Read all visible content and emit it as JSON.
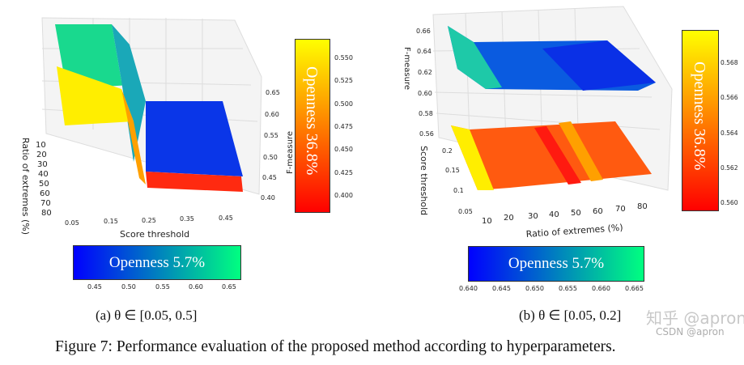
{
  "figure": {
    "caption": "Figure 7: Performance evaluation of the proposed method according to hyperparameters.",
    "panels": [
      {
        "label": "(a) θ ∈ [0.05, 0.5]",
        "x_label": "Score threshold",
        "x_ticks": [
          "0.05",
          "0.15",
          "0.25",
          "0.35",
          "0.45"
        ],
        "y_label": "Ratio of extremes (%)",
        "y_ticks": [
          "10",
          "20",
          "30",
          "40",
          "50",
          "60",
          "70",
          "80"
        ],
        "z_label": "F-measure",
        "z_ticks": [
          "0.40",
          "0.45",
          "0.50",
          "0.55",
          "0.60",
          "0.65"
        ],
        "colorbar_top": {
          "label": "Openness 36.8%",
          "colormap": "autumn",
          "ticks": [
            "0.550",
            "0.525",
            "0.500",
            "0.475",
            "0.450",
            "0.425",
            "0.400"
          ]
        },
        "colorbar_bottom": {
          "label": "Openness 5.7%",
          "colormap": "winter",
          "ticks": [
            "0.45",
            "0.50",
            "0.55",
            "0.60",
            "0.65"
          ]
        }
      },
      {
        "label": "(b) θ ∈ [0.05, 0.2]",
        "x_label": "Ratio of extremes (%)",
        "x_ticks": [
          "10",
          "20",
          "30",
          "40",
          "50",
          "60",
          "70",
          "80"
        ],
        "y_label": "Score threshold",
        "y_ticks": [
          "0.2",
          "0.15",
          "0.1",
          "0.05"
        ],
        "z_label": "F-measure",
        "z_ticks": [
          "0.66",
          "0.64",
          "0.62",
          "0.60",
          "0.58",
          "0.56"
        ],
        "colorbar_top": {
          "label": "Openness 36.8%",
          "colormap": "autumn",
          "ticks": [
            "0.568",
            "0.566",
            "0.564",
            "0.562",
            "0.560"
          ]
        },
        "colorbar_bottom": {
          "label": "Openness 5.7%",
          "colormap": "winter",
          "ticks": [
            "0.640",
            "0.645",
            "0.650",
            "0.655",
            "0.660",
            "0.665"
          ]
        }
      }
    ]
  },
  "watermark": "知乎 @apron",
  "watermark2": "CSDN @apron",
  "colors": {
    "winter_low": "#0000ff",
    "winter_high": "#00ff80",
    "autumn_low": "#ff0000",
    "autumn_high": "#ffff00"
  }
}
